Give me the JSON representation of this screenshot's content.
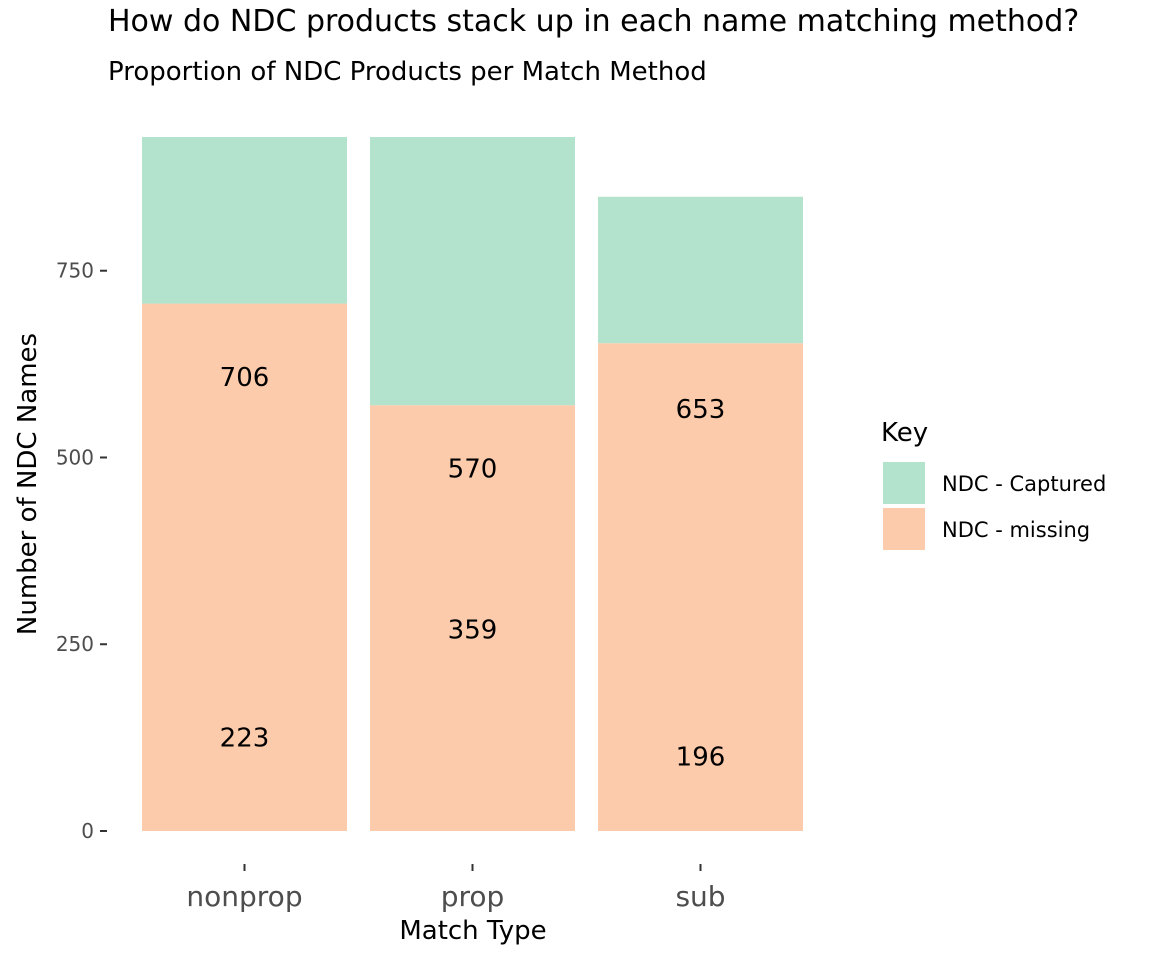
{
  "chart_data": {
    "type": "bar",
    "stacked": true,
    "title": "How do NDC products stack up in each name matching method?",
    "subtitle": "Proportion of NDC Products per Match Method",
    "xlabel": "Match Type",
    "ylabel": "Number of NDC Names",
    "categories": [
      "nonprop",
      "prop",
      "sub"
    ],
    "yticks": [
      0,
      250,
      500,
      750
    ],
    "ylim": [
      0,
      935
    ],
    "series": [
      {
        "name": "NDC - missing",
        "color": "#fccbab",
        "values": [
          706,
          570,
          653
        ]
      },
      {
        "name": "NDC - Captured",
        "color": "#b3e2cd",
        "values": [
          223,
          359,
          196
        ]
      }
    ],
    "data_labels": [
      {
        "category": "nonprop",
        "value": 706,
        "text": "706",
        "at": 608
      },
      {
        "category": "nonprop",
        "value": 223,
        "text": "223",
        "at": 125
      },
      {
        "category": "prop",
        "value": 570,
        "text": "570",
        "at": 485
      },
      {
        "category": "prop",
        "value": 359,
        "text": "359",
        "at": 270
      },
      {
        "category": "sub",
        "value": 653,
        "text": "653",
        "at": 565
      },
      {
        "category": "sub",
        "value": 196,
        "text": "196",
        "at": 100
      }
    ],
    "legend": {
      "title": "Key",
      "position": "right",
      "entries": [
        {
          "label": "NDC - Captured",
          "color": "#b3e2cd"
        },
        {
          "label": "NDC - missing",
          "color": "#fccbab"
        }
      ]
    },
    "grid": false
  }
}
